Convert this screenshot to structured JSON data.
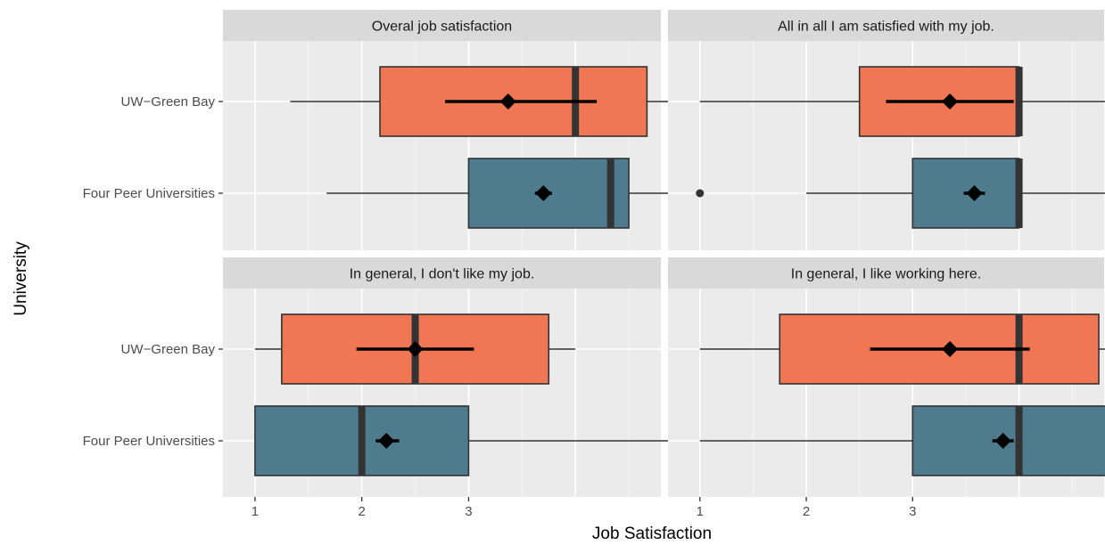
{
  "chart_data": {
    "type": "boxplot",
    "xlabel": "Job Satisfaction",
    "ylabel": "University",
    "categories": [
      "UW−Green Bay",
      "Four Peer Universities"
    ],
    "xlim": [
      0.7,
      4.8
    ],
    "x_ticks": [
      1,
      2,
      3
    ],
    "x_tick_labels": [
      "1",
      "2",
      "3"
    ],
    "grid": true,
    "colors": {
      "UW−Green Bay": "#f07654",
      "Four Peer Universities": "#4e7b8e",
      "panel_background": "#ebebeb",
      "strip_background": "#d9d9d9",
      "gridline": "#ffffff"
    },
    "panels": [
      {
        "title": "Overal job satisfaction",
        "groups": [
          {
            "category": "UW−Green Bay",
            "whisker_low": 1.33,
            "q1": 2.17,
            "median": 4.0,
            "q3": 4.67,
            "whisker_high": 5.0,
            "mean": 3.37,
            "ci_low": 2.78,
            "ci_high": 4.2
          },
          {
            "category": "Four Peer Universities",
            "whisker_low": 1.67,
            "q1": 3.0,
            "median": 4.33,
            "q3": 4.5,
            "whisker_high": 5.0,
            "mean": 3.7,
            "ci_low": 3.62,
            "ci_high": 3.78
          }
        ]
      },
      {
        "title": "All in all I am satisfied with my job.",
        "groups": [
          {
            "category": "UW−Green Bay",
            "whisker_low": 1.0,
            "q1": 2.5,
            "median": 4.0,
            "q3": 4.0,
            "whisker_high": 5.0,
            "mean": 3.35,
            "ci_low": 2.75,
            "ci_high": 3.95
          },
          {
            "category": "Four Peer Universities",
            "whisker_low": 2.0,
            "q1": 3.0,
            "median": 4.0,
            "q3": 4.0,
            "whisker_high": 5.0,
            "mean": 3.58,
            "ci_low": 3.48,
            "ci_high": 3.68,
            "outliers": [
              1.0
            ]
          }
        ]
      },
      {
        "title": "In general, I don't like my job.",
        "groups": [
          {
            "category": "UW−Green Bay",
            "whisker_low": 1.0,
            "q1": 1.25,
            "median": 2.5,
            "q3": 3.75,
            "whisker_high": 4.0,
            "mean": 2.5,
            "ci_low": 1.95,
            "ci_high": 3.05
          },
          {
            "category": "Four Peer Universities",
            "whisker_low": 1.0,
            "q1": 1.0,
            "median": 2.0,
            "q3": 3.0,
            "whisker_high": 5.0,
            "mean": 2.23,
            "ci_low": 2.13,
            "ci_high": 2.35
          }
        ]
      },
      {
        "title": "In general, I like working here.",
        "groups": [
          {
            "category": "UW−Green Bay",
            "whisker_low": 1.0,
            "q1": 1.75,
            "median": 4.0,
            "q3": 4.75,
            "whisker_high": 5.0,
            "mean": 3.35,
            "ci_low": 2.6,
            "ci_high": 4.1
          },
          {
            "category": "Four Peer Universities",
            "whisker_low": 1.0,
            "q1": 3.0,
            "median": 4.0,
            "q3": 5.0,
            "whisker_high": 5.0,
            "mean": 3.85,
            "ci_low": 3.75,
            "ci_high": 3.95
          }
        ]
      }
    ]
  }
}
